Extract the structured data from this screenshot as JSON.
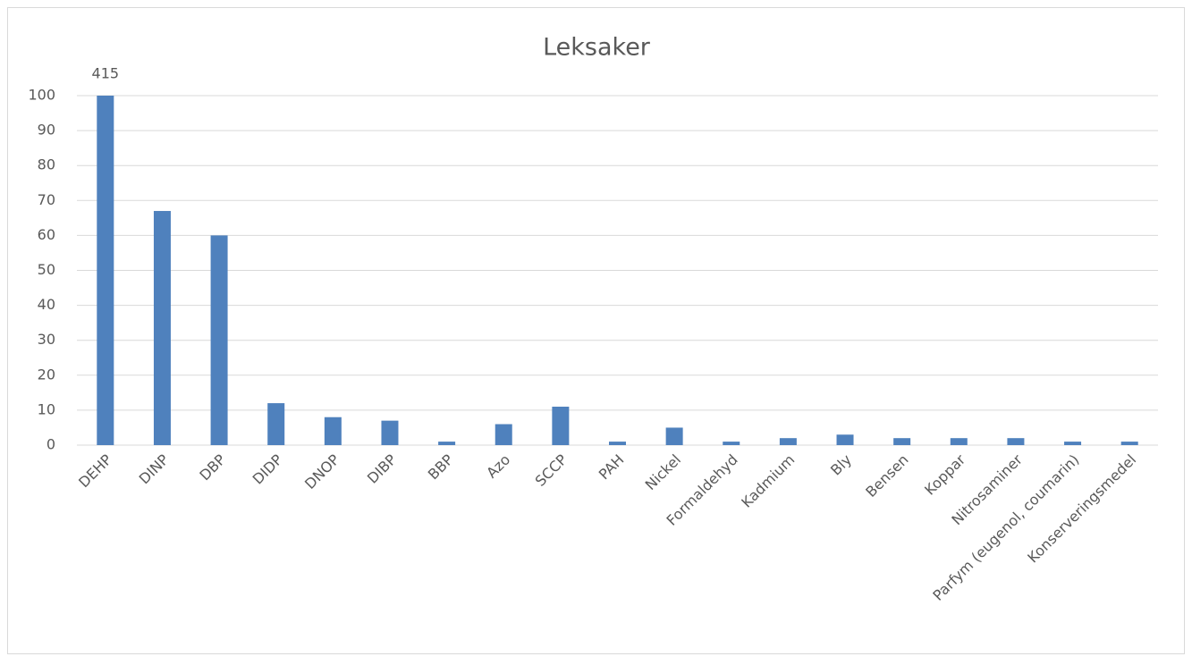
{
  "chart_data": {
    "type": "bar",
    "title": "Leksaker",
    "categories": [
      "DEHP",
      "DINP",
      "DBP",
      "DIDP",
      "DNOP",
      "DIBP",
      "BBP",
      "Azo",
      "SCCP",
      "PAH",
      "Nickel",
      "Formaldehyd",
      "Kadmium",
      "Bly",
      "Bensen",
      "Koppar",
      "Nitrosaminer",
      "Parfym (eugenol, coumarin)",
      "Konserveringsmedel"
    ],
    "values": [
      415,
      67,
      60,
      12,
      8,
      7,
      1,
      6,
      11,
      1,
      5,
      1,
      2,
      3,
      2,
      2,
      2,
      1,
      1
    ],
    "value_labels": [
      "415",
      null,
      null,
      null,
      null,
      null,
      null,
      null,
      null,
      null,
      null,
      null,
      null,
      null,
      null,
      null,
      null,
      null,
      null
    ],
    "color": "#4f81bd",
    "ylim": [
      0,
      100
    ],
    "yticks": [
      0,
      10,
      20,
      30,
      40,
      50,
      60,
      70,
      80,
      90,
      100
    ],
    "grid": true
  }
}
